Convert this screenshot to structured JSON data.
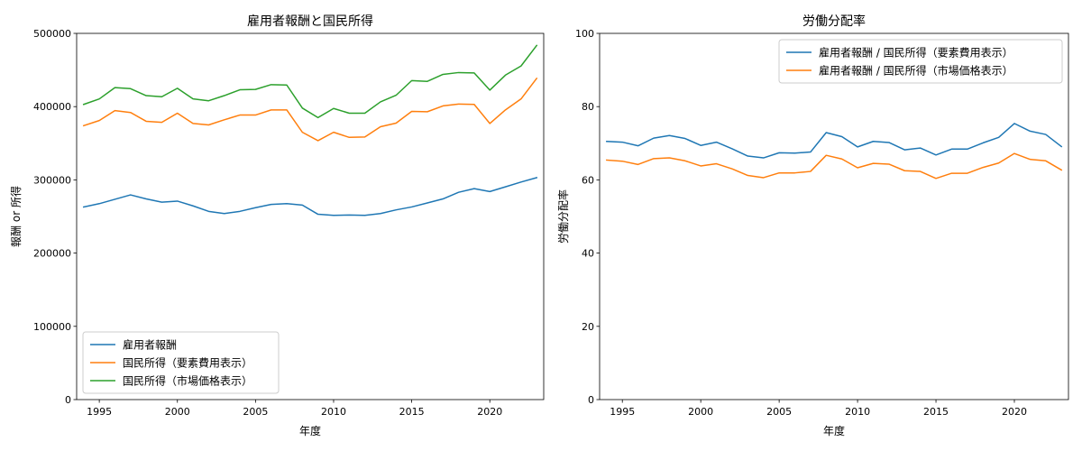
{
  "chart_data": [
    {
      "type": "line",
      "title": "雇用者報酬と国民所得",
      "xlabel": "年度",
      "ylabel": "報酬 or 所得",
      "x": [
        1994,
        1995,
        1996,
        1997,
        1998,
        1999,
        2000,
        2001,
        2002,
        2003,
        2004,
        2005,
        2006,
        2007,
        2008,
        2009,
        2010,
        2011,
        2012,
        2013,
        2014,
        2015,
        2016,
        2017,
        2018,
        2019,
        2020,
        2021,
        2022,
        2023
      ],
      "xlim": [
        1993.55,
        2023.45
      ],
      "ylim": [
        0,
        500000
      ],
      "xticks": [
        1995,
        2000,
        2005,
        2010,
        2015,
        2020
      ],
      "yticks": [
        0,
        100000,
        200000,
        300000,
        400000,
        500000
      ],
      "legend_position": "lower-left",
      "grid": false,
      "series": [
        {
          "name": "雇用者報酬",
          "color": "#1f77b4",
          "values": [
            263000,
            267500,
            273500,
            279500,
            274000,
            269500,
            271000,
            264500,
            257000,
            254000,
            257000,
            262000,
            266500,
            267500,
            265500,
            253000,
            251500,
            252000,
            251500,
            254000,
            259000,
            263000,
            268500,
            274000,
            283000,
            288000,
            284000,
            290500,
            297000,
            303000
          ]
        },
        {
          "name": "国民所得（要素費用表示）",
          "color": "#ff7f0e",
          "values": [
            374000,
            381000,
            394500,
            392000,
            380000,
            378500,
            391000,
            377000,
            375000,
            382000,
            388500,
            388500,
            395500,
            395500,
            365000,
            353500,
            365000,
            358000,
            358500,
            372500,
            377500,
            393500,
            393000,
            401000,
            403500,
            403000,
            377000,
            395500,
            410500,
            438500
          ]
        },
        {
          "name": "国民所得（市場価格表示）",
          "color": "#2ca02c",
          "values": [
            403000,
            410500,
            426000,
            424500,
            415000,
            413500,
            425000,
            410500,
            408000,
            415000,
            423000,
            423500,
            430000,
            429500,
            398000,
            385000,
            397500,
            391000,
            391000,
            406500,
            415500,
            435500,
            434500,
            444000,
            446500,
            446000,
            422500,
            443000,
            455500,
            483500
          ]
        }
      ]
    },
    {
      "type": "line",
      "title": "労働分配率",
      "xlabel": "年度",
      "ylabel": "労働分配率",
      "x": [
        1994,
        1995,
        1996,
        1997,
        1998,
        1999,
        2000,
        2001,
        2002,
        2003,
        2004,
        2005,
        2006,
        2007,
        2008,
        2009,
        2010,
        2011,
        2012,
        2013,
        2014,
        2015,
        2016,
        2017,
        2018,
        2019,
        2020,
        2021,
        2022,
        2023
      ],
      "xlim": [
        1993.55,
        2023.45
      ],
      "ylim": [
        0,
        100
      ],
      "xticks": [
        1995,
        2000,
        2005,
        2010,
        2015,
        2020
      ],
      "yticks": [
        0,
        20,
        40,
        60,
        80,
        100
      ],
      "legend_position": "upper-right",
      "grid": false,
      "series": [
        {
          "name": "雇用者報酬 / 国民所得（要素費用表示）",
          "color": "#1f77b4",
          "values": [
            70.5,
            70.3,
            69.3,
            71.4,
            72.1,
            71.3,
            69.4,
            70.3,
            68.5,
            66.5,
            66.0,
            67.4,
            67.3,
            67.6,
            72.9,
            71.8,
            69.0,
            70.5,
            70.2,
            68.2,
            68.7,
            66.8,
            68.4,
            68.4,
            70.1,
            71.6,
            75.4,
            73.3,
            72.4,
            69.1
          ]
        },
        {
          "name": "雇用者報酬 / 国民所得（市場価格表示）",
          "color": "#ff7f0e",
          "values": [
            65.4,
            65.1,
            64.2,
            65.8,
            66.0,
            65.2,
            63.8,
            64.4,
            63.0,
            61.2,
            60.6,
            61.9,
            61.9,
            62.3,
            66.7,
            65.7,
            63.3,
            64.5,
            64.3,
            62.5,
            62.3,
            60.4,
            61.8,
            61.8,
            63.4,
            64.6,
            67.2,
            65.6,
            65.2,
            62.7
          ]
        }
      ]
    }
  ]
}
